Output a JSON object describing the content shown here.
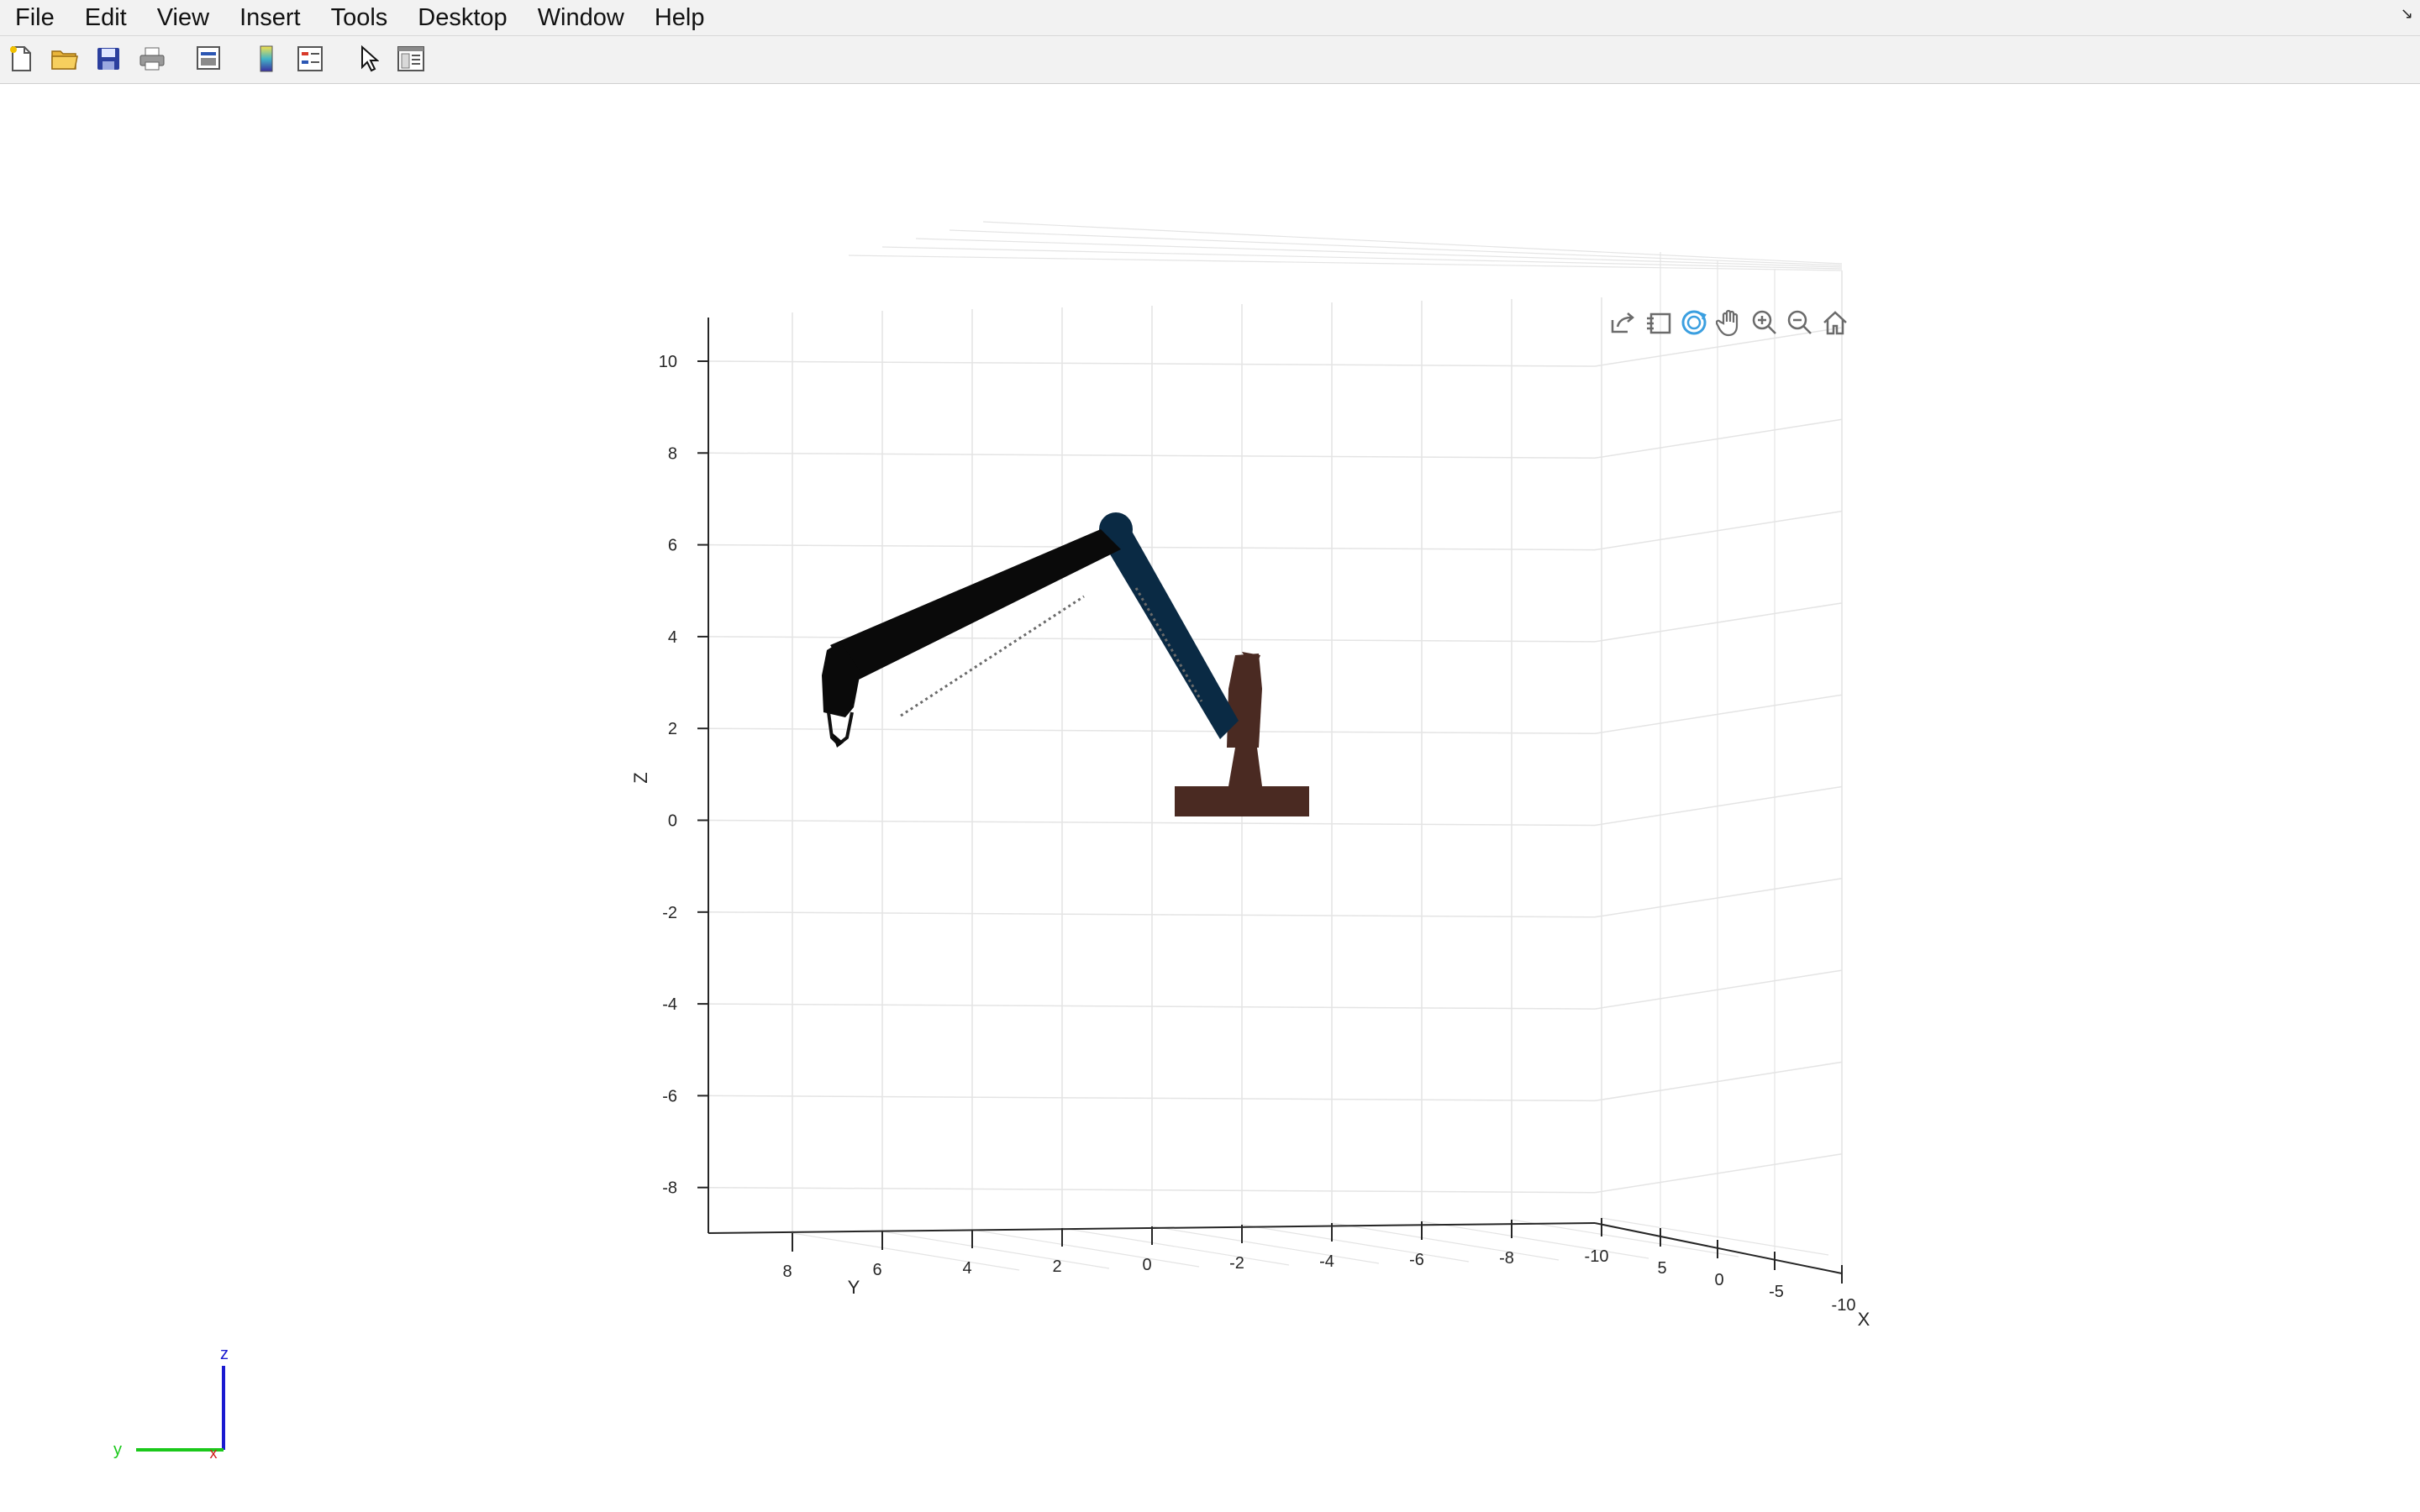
{
  "menubar": {
    "items": [
      "File",
      "Edit",
      "View",
      "Insert",
      "Tools",
      "Desktop",
      "Window",
      "Help"
    ]
  },
  "toolbar": {
    "icons": [
      "new-figure-icon",
      "open-file-icon",
      "save-icon",
      "print-icon",
      "print-preview-icon",
      "colorbar-icon",
      "legend-icon",
      "select-arrow-icon",
      "property-inspector-icon"
    ]
  },
  "axes_toolbar": {
    "icons": [
      "export-icon",
      "brush-icon",
      "rotate-3d-icon",
      "pan-icon",
      "zoom-in-icon",
      "zoom-out-icon",
      "home-icon"
    ],
    "active": "rotate-3d-icon",
    "active_color": "#3b9fe0"
  },
  "plot": {
    "z_ticks": [
      "10",
      "8",
      "6",
      "4",
      "2",
      "0",
      "-2",
      "-4",
      "-6",
      "-8"
    ],
    "y_ticks": [
      "8",
      "6",
      "4",
      "2",
      "0",
      "-2",
      "-4",
      "-6",
      "-8",
      "-10"
    ],
    "x_ticks": [
      "5",
      "0",
      "-5",
      "-10"
    ],
    "z_label": "Z",
    "y_label": "Y",
    "x_label": "X",
    "colors": {
      "base": "#4a2a22",
      "upper_arm": "#0a2a44",
      "forearm": "#0a0a0a",
      "grid": "#e4e4e4",
      "axis": "#262626"
    }
  },
  "triad": {
    "z": "z",
    "y": "y",
    "x": "x",
    "z_color": "#1a1ad0",
    "y_color": "#1ac81a",
    "x_color": "#d01a1a"
  }
}
